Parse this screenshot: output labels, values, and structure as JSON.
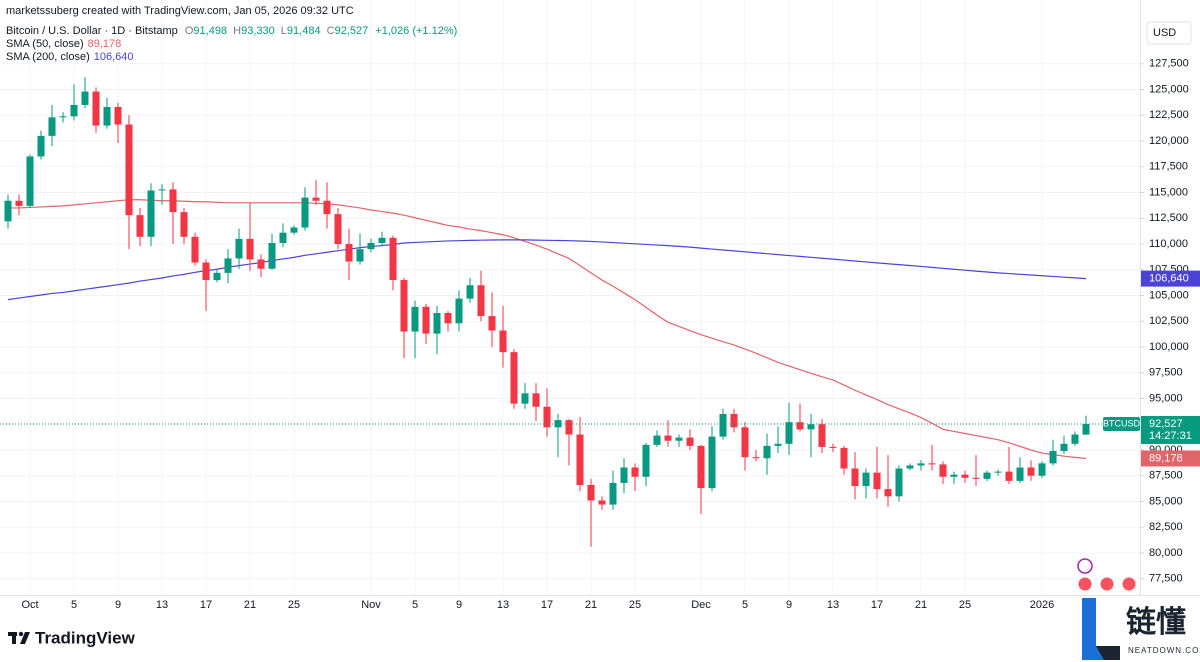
{
  "chart_data": {
    "type": "candlestick",
    "attribution": "marketssuberg created with TradingView.com, Jan 05, 2026 09:32 UTC",
    "symbol": "Bitcoin / U.S. Dollar · 1D · Bitstamp",
    "ohlc": [
      {
        "key": "O",
        "value": "91,498"
      },
      {
        "key": "H",
        "value": "93,330"
      },
      {
        "key": "L",
        "value": "91,484"
      },
      {
        "key": "C",
        "value": "92,527"
      }
    ],
    "change": "+1,026 (+1.12%)",
    "currency": "USD",
    "brand": "TradingView",
    "watermark": {
      "name": "链懂",
      "site": "NEATDOWN.COM"
    },
    "grid": true,
    "xlim": [
      -0.7273,
      102.909
    ],
    "xticks": [
      {
        "value": 2,
        "label": "Oct"
      },
      {
        "value": 6,
        "label": "5"
      },
      {
        "value": 10,
        "label": "9"
      },
      {
        "value": 14,
        "label": "13"
      },
      {
        "value": 18,
        "label": "17"
      },
      {
        "value": 22,
        "label": "21"
      },
      {
        "value": 26,
        "label": "25"
      },
      {
        "value": 33,
        "label": "Nov"
      },
      {
        "value": 37,
        "label": "5"
      },
      {
        "value": 41,
        "label": "9"
      },
      {
        "value": 45,
        "label": "13"
      },
      {
        "value": 49,
        "label": "17"
      },
      {
        "value": 53,
        "label": "21"
      },
      {
        "value": 57,
        "label": "25"
      },
      {
        "value": 63,
        "label": "Dec"
      },
      {
        "value": 67,
        "label": "5"
      },
      {
        "value": 71,
        "label": "9"
      },
      {
        "value": 75,
        "label": "13"
      },
      {
        "value": 79,
        "label": "17"
      },
      {
        "value": 83,
        "label": "21"
      },
      {
        "value": 87,
        "label": "25"
      },
      {
        "value": 94,
        "label": "2026"
      }
    ],
    "ylim": [
      75920,
      131750
    ],
    "yticks": [
      {
        "value": 77500,
        "label": "77,500"
      },
      {
        "value": 80000,
        "label": "80,000"
      },
      {
        "value": 82500,
        "label": "82,500"
      },
      {
        "value": 85000,
        "label": "85,000"
      },
      {
        "value": 87500,
        "label": "87,500"
      },
      {
        "value": 90000,
        "label": "90,000"
      },
      {
        "value": 95000,
        "label": "95,000"
      },
      {
        "value": 97500,
        "label": "97,500"
      },
      {
        "value": 100000,
        "label": "100,000"
      },
      {
        "value": 102500,
        "label": "102,500"
      },
      {
        "value": 105000,
        "label": "105,000"
      },
      {
        "value": 107500,
        "label": "107,500"
      },
      {
        "value": 110000,
        "label": "110,000"
      },
      {
        "value": 112500,
        "label": "112,500"
      },
      {
        "value": 115000,
        "label": "115,000"
      },
      {
        "value": 117500,
        "label": "117,500"
      },
      {
        "value": 120000,
        "label": "120,000"
      },
      {
        "value": 122500,
        "label": "122,500"
      },
      {
        "value": 125000,
        "label": "125,000"
      },
      {
        "value": 127500,
        "label": "127,500"
      }
    ],
    "series": [
      {
        "name": "BTCUSD",
        "type": "candlestick",
        "up_color": "#089981",
        "down_color": "#f23645",
        "last_label": "92,527",
        "countdown": "14:27:31",
        "open": [
          112200,
          114200,
          113700,
          118500,
          120500,
          122300,
          122400,
          123500,
          124800,
          121500,
          123300,
          121600,
          112800,
          110700,
          115200,
          115300,
          113100,
          110700,
          108200,
          106500,
          107200,
          108600,
          110500,
          108500,
          107600,
          110100,
          111100,
          111600,
          114500,
          114200,
          112900,
          110000,
          108300,
          109500,
          110100,
          110600,
          106500,
          101500,
          103900,
          101300,
          103300,
          102300,
          104700,
          106000,
          103000,
          101600,
          99500,
          94500,
          95500,
          94200,
          92200,
          92900,
          91500,
          86600,
          85100,
          84700,
          86800,
          88300,
          87400,
          90500,
          91400,
          90900,
          91200,
          90400,
          86300,
          91300,
          93500,
          92200,
          89300,
          89200,
          90400,
          90600,
          92700,
          92000,
          92500,
          90300,
          90200,
          88200,
          86500,
          87800,
          86200,
          85500,
          88200,
          88500,
          88700,
          88600,
          87400,
          87600,
          87300,
          87200,
          87800,
          87900,
          87000,
          88300,
          87500,
          88700,
          89900,
          90600,
          91498
        ],
        "high": [
          114800,
          114800,
          118700,
          121000,
          123500,
          122800,
          125500,
          126200,
          125200,
          124200,
          123700,
          122500,
          113500,
          115900,
          115800,
          116000,
          113500,
          111100,
          108500,
          107500,
          109500,
          111500,
          114000,
          109000,
          111000,
          112000,
          111800,
          115500,
          116200,
          116000,
          113500,
          111500,
          111000,
          110500,
          111200,
          110800,
          106700,
          104500,
          104200,
          104000,
          103500,
          105500,
          106700,
          107400,
          105300,
          104000,
          99800,
          96500,
          96500,
          96000,
          93500,
          93000,
          93200,
          87200,
          85500,
          88000,
          89200,
          88700,
          90700,
          91900,
          92900,
          91500,
          92000,
          90500,
          92300,
          94000,
          94000,
          92700,
          90000,
          91600,
          92300,
          94600,
          94500,
          93500,
          93000,
          90600,
          90400,
          89800,
          88200,
          90300,
          89500,
          88500,
          88700,
          89000,
          90500,
          88900,
          87900,
          88000,
          89500,
          88000,
          88100,
          90300,
          89300,
          89000,
          88900,
          91000,
          91400,
          91800,
          93330
        ],
        "low": [
          111500,
          112800,
          113500,
          118200,
          119500,
          121800,
          122000,
          123200,
          120800,
          121200,
          119800,
          109500,
          109800,
          109800,
          113800,
          110000,
          110000,
          107900,
          103500,
          106300,
          106200,
          107600,
          107400,
          106800,
          107500,
          109700,
          110900,
          111300,
          113800,
          111500,
          109500,
          106500,
          108000,
          109200,
          109900,
          105500,
          98900,
          98900,
          100300,
          99300,
          101500,
          101500,
          104300,
          102500,
          100000,
          98000,
          94000,
          94000,
          92800,
          91300,
          89300,
          88500,
          86000,
          80600,
          84200,
          84200,
          85800,
          86000,
          86500,
          90300,
          90300,
          90300,
          90000,
          83800,
          86000,
          91000,
          91700,
          88000,
          88900,
          87600,
          89700,
          89500,
          91800,
          89300,
          89700,
          89800,
          87600,
          85200,
          85300,
          85300,
          84500,
          85000,
          88000,
          88000,
          88000,
          86700,
          86700,
          86800,
          86500,
          87000,
          87500,
          86700,
          86800,
          87000,
          87300,
          88500,
          89600,
          90400,
          91484
        ],
        "close": [
          114200,
          113700,
          118500,
          120500,
          122300,
          122400,
          123500,
          124800,
          121500,
          123300,
          121600,
          112800,
          110700,
          115200,
          115300,
          113100,
          110700,
          108200,
          106500,
          107200,
          108600,
          110500,
          108500,
          107600,
          110100,
          111100,
          111600,
          114500,
          114200,
          112900,
          110000,
          108300,
          109500,
          110100,
          110600,
          106500,
          101500,
          103900,
          101300,
          103300,
          102300,
          104700,
          106000,
          103000,
          101600,
          99500,
          94500,
          95500,
          94200,
          92200,
          92900,
          91500,
          86600,
          85100,
          84700,
          86800,
          88300,
          87400,
          90500,
          91400,
          90900,
          91200,
          90400,
          86300,
          91300,
          93500,
          92200,
          89300,
          89200,
          90400,
          90600,
          92700,
          92000,
          92500,
          90300,
          90200,
          88200,
          86500,
          87800,
          86200,
          85500,
          88200,
          88500,
          88700,
          88600,
          87400,
          87600,
          87300,
          87200,
          87800,
          87900,
          87000,
          88300,
          87500,
          88700,
          89900,
          90600,
          91500,
          92527
        ]
      },
      {
        "name": "SMA (50, close)",
        "type": "line",
        "color": "#e2646b",
        "last_label": "89,178",
        "values": [
          113500,
          113500,
          113550,
          113600,
          113650,
          113700,
          113800,
          113900,
          114000,
          114100,
          114200,
          114300,
          114300,
          114250,
          114200,
          114200,
          114150,
          114100,
          114100,
          114050,
          114000,
          114000,
          114000,
          114000,
          114000,
          114000,
          114000,
          114000,
          113950,
          113900,
          113800,
          113650,
          113500,
          113300,
          113150,
          113000,
          112800,
          112550,
          112300,
          112050,
          111800,
          111650,
          111450,
          111300,
          111100,
          110900,
          110600,
          110250,
          109900,
          109500,
          109050,
          108600,
          107900,
          107200,
          106500,
          105900,
          105250,
          104600,
          103850,
          103100,
          102400,
          102000,
          101600,
          101200,
          100850,
          100500,
          100200,
          99800,
          99400,
          98950,
          98500,
          98150,
          97800,
          97450,
          97100,
          96800,
          96300,
          95800,
          95350,
          94900,
          94400,
          94000,
          93600,
          93150,
          92600,
          92000,
          91800,
          91600,
          91400,
          91200,
          91000,
          90700,
          90350,
          90000,
          89700,
          89550,
          89400,
          89280,
          89178
        ]
      },
      {
        "name": "SMA (200, close)",
        "type": "line",
        "color": "#4b43d6",
        "last_label": "106,640",
        "values": [
          104600,
          104750,
          104900,
          105050,
          105200,
          105300,
          105450,
          105600,
          105750,
          105900,
          106050,
          106200,
          106400,
          106550,
          106700,
          106900,
          107050,
          107250,
          107400,
          107550,
          107750,
          107900,
          108050,
          108200,
          108400,
          108550,
          108700,
          108900,
          109050,
          109200,
          109350,
          109500,
          109650,
          109750,
          109850,
          109950,
          110100,
          110150,
          110200,
          110250,
          110300,
          110320,
          110350,
          110370,
          110390,
          110400,
          110400,
          110400,
          110380,
          110360,
          110340,
          110320,
          110290,
          110250,
          110200,
          110140,
          110080,
          110020,
          109960,
          109900,
          109840,
          109770,
          109700,
          109600,
          109510,
          109420,
          109330,
          109240,
          109150,
          109060,
          108970,
          108880,
          108800,
          108710,
          108620,
          108530,
          108440,
          108350,
          108260,
          108170,
          108080,
          108000,
          107910,
          107820,
          107730,
          107640,
          107550,
          107460,
          107370,
          107280,
          107200,
          107130,
          107060,
          106990,
          106920,
          106850,
          106780,
          106710,
          106640
        ]
      }
    ]
  }
}
